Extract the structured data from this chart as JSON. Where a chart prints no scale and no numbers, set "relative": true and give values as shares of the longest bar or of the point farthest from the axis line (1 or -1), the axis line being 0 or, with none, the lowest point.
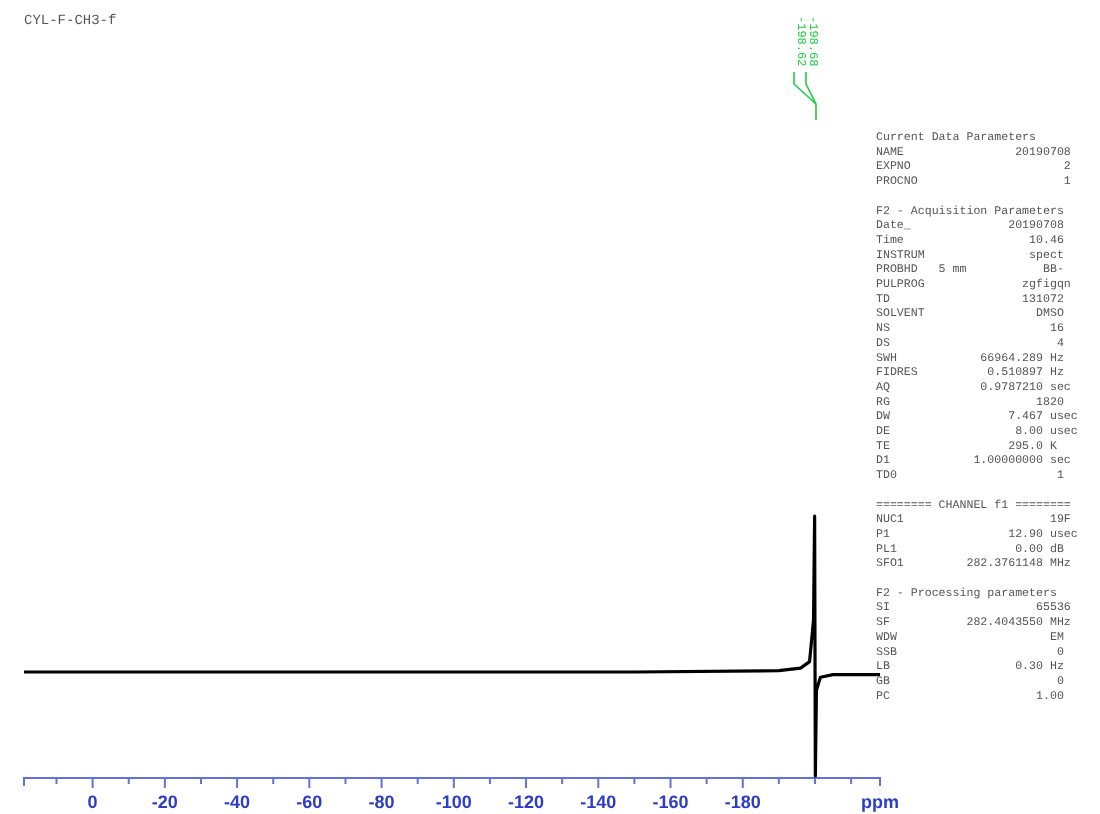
{
  "chart_data": {
    "type": "line",
    "title": "CYL-F-CH3-f",
    "xlabel": "ppm",
    "relative": true,
    "tick_labels": "x",
    "grid": false,
    "marker": "none",
    "line_style": "solid",
    "x": [
      19,
      -100,
      -150,
      -190,
      -196,
      -198.5,
      -199.6,
      -199.9,
      -200.1,
      -200.4,
      -201.5,
      -205,
      -218
    ],
    "series": [
      {
        "color": "#000000",
        "values": [
          0.4,
          0.4,
          0.4,
          0.405,
          0.415,
          0.44,
          0.6,
          1.0,
          0.0,
          0.33,
          0.38,
          0.39,
          0.39
        ]
      }
    ],
    "xlim": [
      19,
      -218
    ],
    "xticks": [
      {
        "value": 10,
        "label": null
      },
      0,
      {
        "value": -10,
        "label": null
      },
      -20,
      {
        "value": -30,
        "label": null
      },
      -40,
      {
        "value": -50,
        "label": null
      },
      -60,
      {
        "value": -70,
        "label": null
      },
      -80,
      {
        "value": -90,
        "label": null
      },
      -100,
      {
        "value": -110,
        "label": null
      },
      -120,
      {
        "value": -130,
        "label": null
      },
      -140,
      {
        "value": -150,
        "label": null
      },
      -160,
      {
        "value": -170,
        "label": null
      },
      -180,
      {
        "value": -190,
        "label": null
      },
      {
        "value": -200,
        "label": null
      },
      {
        "value": -210,
        "label": null
      }
    ],
    "annotations": [
      "-198.62",
      "-198.68",
      "Current Data Parameters\nNAME                20190708\nEXPNO                      2\nPROCNO                     1",
      "F2 - Acquisition Parameters\nDate_              20190708\nTime                  10.46\nINSTRUM               spect\nPROBHD   5 mm           BB-\nPULPROG              zgfigqn\nTD                   131072\nSOLVENT                DMSO\nNS                       16\nDS                        4\nSWH            66964.289 Hz\nFIDRES          0.510897 Hz\nAQ             0.9787210 sec\nRG                     1820\nDW                 7.467 usec\nDE                  8.00 usec\nTE                 295.0 K\nD1            1.00000000 sec\nTD0                       1",
      "======== CHANNEL f1 ========\nNUC1                     19F\nP1                 12.90 usec\nPL1                 0.00 dB\nSFO1         282.3761148 MHz",
      "F2 - Processing parameters\nSI                     65536\nSF           282.4043550 MHz\nWDW                      EM\nSSB                       0\nLB                  0.30 Hz\nGB                        0\nPC                     1.00"
    ]
  }
}
